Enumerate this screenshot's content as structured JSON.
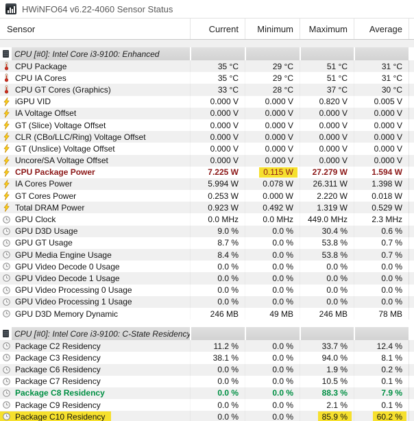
{
  "window": {
    "title": "HWiNFO64 v6.22-4060 Sensor Status",
    "app_icon": "hwinfo-logo-icon"
  },
  "columns": {
    "sensor": "Sensor",
    "current": "Current",
    "minimum": "Minimum",
    "maximum": "Maximum",
    "average": "Average"
  },
  "colors": {
    "highlight_yellow": "#f6e02d",
    "alert_maroon": "#8b1717",
    "alert_green": "#008f43",
    "stripe_gray": "#f0f0f0"
  },
  "rows": [
    {
      "type": "spacer",
      "shade": "gray"
    },
    {
      "type": "section",
      "icon": "cpu-chip-icon",
      "label": "CPU [#0]: Intel Core i3-9100: Enhanced"
    },
    {
      "type": "data",
      "icon": "thermometer-icon",
      "label": "CPU Package",
      "values": [
        "35 °C",
        "29 °C",
        "51 °C",
        "31 °C"
      ],
      "stripe": "gray"
    },
    {
      "type": "data",
      "icon": "thermometer-icon",
      "label": "CPU IA Cores",
      "values": [
        "35 °C",
        "29 °C",
        "51 °C",
        "31 °C"
      ],
      "stripe": "white"
    },
    {
      "type": "data",
      "icon": "thermometer-icon",
      "label": "CPU GT Cores (Graphics)",
      "values": [
        "33 °C",
        "28 °C",
        "37 °C",
        "30 °C"
      ],
      "stripe": "gray"
    },
    {
      "type": "data",
      "icon": "lightning-icon",
      "label": "iGPU VID",
      "values": [
        "0.000 V",
        "0.000 V",
        "0.820 V",
        "0.005 V"
      ],
      "stripe": "white"
    },
    {
      "type": "data",
      "icon": "lightning-icon",
      "label": "IA Voltage Offset",
      "values": [
        "0.000 V",
        "0.000 V",
        "0.000 V",
        "0.000 V"
      ],
      "stripe": "gray"
    },
    {
      "type": "data",
      "icon": "lightning-icon",
      "label": "GT (Slice) Voltage Offset",
      "values": [
        "0.000 V",
        "0.000 V",
        "0.000 V",
        "0.000 V"
      ],
      "stripe": "white"
    },
    {
      "type": "data",
      "icon": "lightning-icon",
      "label": "CLR (CBo/LLC/Ring) Voltage Offset",
      "values": [
        "0.000 V",
        "0.000 V",
        "0.000 V",
        "0.000 V"
      ],
      "stripe": "gray"
    },
    {
      "type": "data",
      "icon": "lightning-icon",
      "label": "GT (Unslice) Voltage Offset",
      "values": [
        "0.000 V",
        "0.000 V",
        "0.000 V",
        "0.000 V"
      ],
      "stripe": "white"
    },
    {
      "type": "data",
      "icon": "lightning-icon",
      "label": "Uncore/SA Voltage Offset",
      "values": [
        "0.000 V",
        "0.000 V",
        "0.000 V",
        "0.000 V"
      ],
      "stripe": "gray"
    },
    {
      "type": "data",
      "icon": "lightning-icon",
      "label": "CPU Package Power",
      "values": [
        "7.225 W",
        "0.115 W",
        "27.279 W",
        "1.594 W"
      ],
      "stripe": "white",
      "style": "maroon",
      "value_highlights": [
        false,
        true,
        false,
        false
      ]
    },
    {
      "type": "data",
      "icon": "lightning-icon",
      "label": "IA Cores Power",
      "values": [
        "5.994 W",
        "0.078 W",
        "26.311 W",
        "1.398 W"
      ],
      "stripe": "gray"
    },
    {
      "type": "data",
      "icon": "lightning-icon",
      "label": "GT Cores Power",
      "values": [
        "0.253 W",
        "0.000 W",
        "2.220 W",
        "0.018 W"
      ],
      "stripe": "white"
    },
    {
      "type": "data",
      "icon": "lightning-icon",
      "label": "Total DRAM Power",
      "values": [
        "0.923 W",
        "0.492 W",
        "1.319 W",
        "0.529 W"
      ],
      "stripe": "gray"
    },
    {
      "type": "data",
      "icon": "clock-icon",
      "label": "GPU Clock",
      "values": [
        "0.0 MHz",
        "0.0 MHz",
        "449.0 MHz",
        "2.3 MHz"
      ],
      "stripe": "white"
    },
    {
      "type": "data",
      "icon": "clock-icon",
      "label": "GPU D3D Usage",
      "values": [
        "9.0 %",
        "0.0 %",
        "30.4 %",
        "0.6 %"
      ],
      "stripe": "gray"
    },
    {
      "type": "data",
      "icon": "clock-icon",
      "label": "GPU GT Usage",
      "values": [
        "8.7 %",
        "0.0 %",
        "53.8 %",
        "0.7 %"
      ],
      "stripe": "white"
    },
    {
      "type": "data",
      "icon": "clock-icon",
      "label": "GPU Media Engine Usage",
      "values": [
        "8.4 %",
        "0.0 %",
        "53.8 %",
        "0.7 %"
      ],
      "stripe": "gray"
    },
    {
      "type": "data",
      "icon": "clock-icon",
      "label": "GPU Video Decode 0 Usage",
      "values": [
        "0.0 %",
        "0.0 %",
        "0.0 %",
        "0.0 %"
      ],
      "stripe": "white"
    },
    {
      "type": "data",
      "icon": "clock-icon",
      "label": "GPU Video Decode 1 Usage",
      "values": [
        "0.0 %",
        "0.0 %",
        "0.0 %",
        "0.0 %"
      ],
      "stripe": "gray"
    },
    {
      "type": "data",
      "icon": "clock-icon",
      "label": "GPU Video Processing 0 Usage",
      "values": [
        "0.0 %",
        "0.0 %",
        "0.0 %",
        "0.0 %"
      ],
      "stripe": "white"
    },
    {
      "type": "data",
      "icon": "clock-icon",
      "label": "GPU Video Processing 1 Usage",
      "values": [
        "0.0 %",
        "0.0 %",
        "0.0 %",
        "0.0 %"
      ],
      "stripe": "gray"
    },
    {
      "type": "data",
      "icon": "clock-icon",
      "label": "GPU D3D Memory Dynamic",
      "values": [
        "246 MB",
        "49 MB",
        "246 MB",
        "78 MB"
      ],
      "stripe": "white"
    },
    {
      "type": "spacer",
      "shade": "white"
    },
    {
      "type": "section",
      "icon": "cpu-chip-icon",
      "label": "CPU [#0]: Intel Core i3-9100: C-State Residency"
    },
    {
      "type": "data",
      "icon": "clock-icon",
      "label": "Package C2 Residency",
      "values": [
        "11.2 %",
        "0.0 %",
        "33.7 %",
        "12.4 %"
      ],
      "stripe": "gray"
    },
    {
      "type": "data",
      "icon": "clock-icon",
      "label": "Package C3 Residency",
      "values": [
        "38.1 %",
        "0.0 %",
        "94.0 %",
        "8.1 %"
      ],
      "stripe": "white"
    },
    {
      "type": "data",
      "icon": "clock-icon",
      "label": "Package C6 Residency",
      "values": [
        "0.0 %",
        "0.0 %",
        "1.9 %",
        "0.2 %"
      ],
      "stripe": "gray"
    },
    {
      "type": "data",
      "icon": "clock-icon",
      "label": "Package C7 Residency",
      "values": [
        "0.0 %",
        "0.0 %",
        "10.5 %",
        "0.1 %"
      ],
      "stripe": "white"
    },
    {
      "type": "data",
      "icon": "clock-icon",
      "label": "Package C8 Residency",
      "values": [
        "0.0 %",
        "0.0 %",
        "88.3 %",
        "7.9 %"
      ],
      "stripe": "gray",
      "style": "green"
    },
    {
      "type": "data",
      "icon": "clock-icon",
      "label": "Package C9 Residency",
      "values": [
        "0.0 %",
        "0.0 %",
        "2.1 %",
        "0.1 %"
      ],
      "stripe": "white"
    },
    {
      "type": "data",
      "icon": "clock-icon",
      "label": "Package C10 Residency",
      "values": [
        "0.0 %",
        "0.0 %",
        "85.9 %",
        "60.2 %"
      ],
      "stripe": "gray",
      "label_highlight": true,
      "value_highlights": [
        false,
        false,
        true,
        true
      ]
    }
  ]
}
